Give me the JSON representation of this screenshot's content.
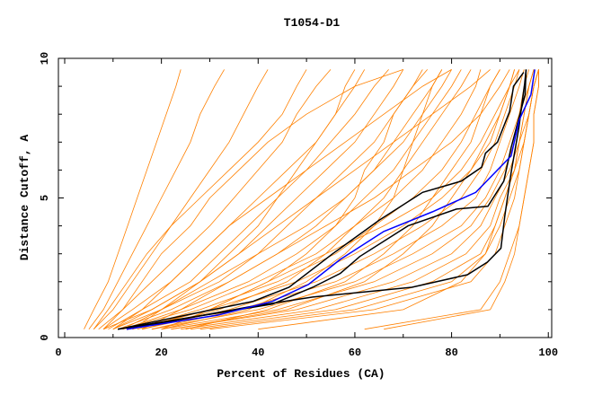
{
  "chart_data": {
    "type": "line",
    "title": "T1054-D1",
    "xlabel": "Percent of Residues (CA)",
    "ylabel": "Distance Cutoff, A",
    "xlim": [
      -1.3,
      100.7
    ],
    "ylim": [
      0,
      10
    ],
    "xticks": [
      "0",
      "20",
      "40",
      "60",
      "80",
      "100"
    ],
    "yticks": [
      "0",
      "5",
      "10"
    ],
    "grid": false,
    "colors": {
      "models": "#ff8000",
      "highlight": "#000000",
      "reference": "#0000ff"
    },
    "cutoff_levels": [
      0.3,
      1,
      2,
      3,
      4,
      5,
      6,
      7,
      8,
      9,
      9.6
    ],
    "model_series_percent_at_levels": [
      [
        4,
        6,
        9,
        11,
        13,
        15,
        17,
        19,
        21,
        23,
        24
      ],
      [
        5,
        8,
        11,
        14,
        17,
        20,
        23,
        26,
        28,
        31,
        33
      ],
      [
        6,
        10,
        14,
        18,
        22,
        26,
        30,
        34,
        37,
        40,
        42
      ],
      [
        7,
        12,
        18,
        24,
        30,
        35,
        40,
        45,
        48,
        52,
        55
      ],
      [
        8,
        14,
        22,
        28,
        34,
        40,
        46,
        52,
        56,
        60,
        62
      ],
      [
        9,
        16,
        26,
        32,
        38,
        44,
        50,
        55,
        60,
        64,
        67
      ],
      [
        10,
        18,
        28,
        36,
        42,
        48,
        54,
        60,
        64,
        68,
        70
      ],
      [
        10,
        20,
        32,
        40,
        46,
        52,
        58,
        64,
        68,
        72,
        75
      ],
      [
        11,
        22,
        34,
        44,
        52,
        58,
        64,
        68,
        72,
        76,
        78
      ],
      [
        12,
        24,
        38,
        48,
        56,
        62,
        68,
        72,
        76,
        80,
        82
      ],
      [
        12,
        26,
        40,
        52,
        60,
        68,
        74,
        78,
        82,
        85,
        86
      ],
      [
        14,
        28,
        44,
        56,
        64,
        72,
        78,
        82,
        85,
        88,
        90
      ],
      [
        15,
        30,
        48,
        60,
        70,
        78,
        84,
        87,
        90,
        92,
        93
      ],
      [
        16,
        34,
        52,
        64,
        74,
        82,
        86,
        89,
        91,
        93,
        94
      ],
      [
        18,
        36,
        56,
        68,
        78,
        85,
        88,
        90,
        92,
        94,
        95
      ],
      [
        18,
        40,
        60,
        72,
        82,
        87,
        90,
        92,
        94,
        95,
        96
      ],
      [
        20,
        44,
        64,
        76,
        84,
        88,
        91,
        93,
        94,
        96,
        97
      ],
      [
        22,
        48,
        68,
        80,
        86,
        89,
        92,
        94,
        95,
        96,
        97
      ],
      [
        24,
        52,
        72,
        83,
        88,
        90,
        93,
        94,
        96,
        97,
        98
      ],
      [
        26,
        56,
        76,
        86,
        89,
        91,
        93,
        95,
        96,
        97,
        98
      ],
      [
        28,
        60,
        80,
        87,
        90,
        92,
        94,
        95,
        96,
        97,
        98
      ],
      [
        30,
        64,
        84,
        89,
        91,
        93,
        94,
        95,
        96,
        97,
        98
      ],
      [
        62,
        86,
        90,
        92,
        94,
        95,
        96,
        97,
        97,
        98,
        98
      ],
      [
        66,
        88,
        91,
        93,
        94,
        95,
        96,
        97,
        97,
        98,
        98
      ],
      [
        8,
        12,
        16,
        20,
        26,
        30,
        36,
        42,
        50,
        60,
        70
      ],
      [
        10,
        16,
        22,
        28,
        34,
        42,
        50,
        58,
        66,
        74,
        80
      ],
      [
        14,
        20,
        28,
        36,
        44,
        52,
        60,
        68,
        76,
        84,
        88
      ],
      [
        16,
        24,
        34,
        44,
        54,
        64,
        72,
        80,
        86,
        90,
        92
      ],
      [
        20,
        30,
        42,
        54,
        66,
        76,
        82,
        86,
        89,
        92,
        94
      ],
      [
        12,
        20,
        30,
        40,
        50,
        58,
        64,
        70,
        74,
        78,
        80
      ],
      [
        6,
        9,
        13,
        17,
        22,
        28,
        34,
        40,
        45,
        48,
        50
      ],
      [
        20,
        38,
        50,
        58,
        64,
        68,
        70,
        72,
        74,
        76,
        78
      ],
      [
        14,
        30,
        42,
        50,
        56,
        60,
        62,
        66,
        68,
        72,
        74
      ],
      [
        25,
        42,
        58,
        66,
        72,
        76,
        80,
        84,
        86,
        88,
        90
      ],
      [
        16,
        32,
        46,
        54,
        60,
        66,
        70,
        74,
        78,
        82,
        84
      ],
      [
        22,
        46,
        62,
        70,
        76,
        80,
        84,
        88,
        90,
        92,
        93
      ],
      [
        8,
        18,
        28,
        34,
        40,
        44,
        48,
        52,
        56,
        58,
        60
      ],
      [
        40,
        70,
        82,
        87,
        89,
        91,
        93,
        94,
        95,
        96,
        97
      ]
    ],
    "highlight_series": [
      {
        "color": "#000000",
        "points": [
          [
            11,
            0.3
          ],
          [
            39,
            1.3
          ],
          [
            46.4,
            1.8
          ],
          [
            55.4,
            3.0
          ],
          [
            65,
            4.2
          ],
          [
            74,
            5.2
          ],
          [
            82,
            5.6
          ],
          [
            86.2,
            6.1
          ],
          [
            87,
            6.6
          ],
          [
            89.5,
            7.0
          ],
          [
            92,
            8.1
          ],
          [
            92.8,
            9.0
          ],
          [
            94.9,
            9.5
          ]
        ]
      },
      {
        "color": "#000000",
        "points": [
          [
            11,
            0.3
          ],
          [
            43,
            1.2
          ],
          [
            51.3,
            1.8
          ],
          [
            57,
            2.3
          ],
          [
            61,
            2.9
          ],
          [
            71,
            4.0
          ],
          [
            81,
            4.6
          ],
          [
            87.5,
            4.7
          ],
          [
            90.8,
            5.6
          ],
          [
            92.3,
            6.8
          ],
          [
            95.2,
            8.7
          ],
          [
            95.4,
            9.6
          ]
        ]
      },
      {
        "color": "#000000",
        "points": [
          [
            12.8,
            0.3
          ],
          [
            38.2,
            1.1
          ],
          [
            51.3,
            1.45
          ],
          [
            71.8,
            1.8
          ],
          [
            83.3,
            2.25
          ],
          [
            87.4,
            2.7
          ],
          [
            90.2,
            3.2
          ],
          [
            91,
            4.35
          ],
          [
            92.3,
            5.9
          ],
          [
            93.9,
            7.5
          ],
          [
            95.1,
            9.1
          ],
          [
            95.4,
            9.6
          ]
        ]
      },
      {
        "color": "#0000ff",
        "points": [
          [
            12.8,
            0.3
          ],
          [
            31.6,
            0.8
          ],
          [
            43,
            1.3
          ],
          [
            50.4,
            1.9
          ],
          [
            57,
            2.8
          ],
          [
            66,
            3.8
          ],
          [
            76,
            4.5
          ],
          [
            85,
            5.2
          ],
          [
            92.3,
            6.5
          ],
          [
            94,
            7.8
          ],
          [
            96.4,
            8.7
          ],
          [
            97.2,
            9.6
          ]
        ]
      }
    ]
  }
}
